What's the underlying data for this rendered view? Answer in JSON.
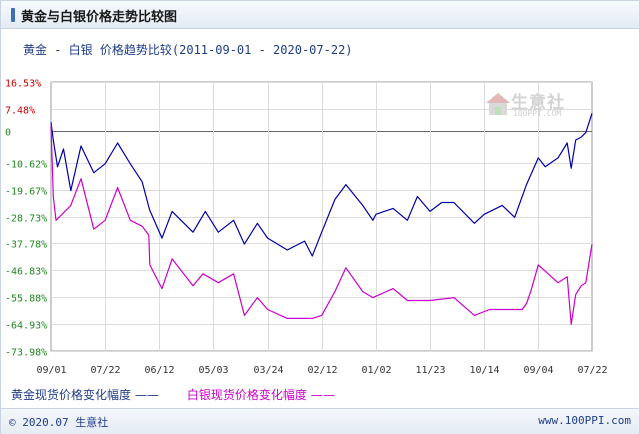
{
  "header": {
    "title": "黄金与白银价格走势比较图"
  },
  "watermark": {
    "brand": "生意社",
    "url": "100PPI.COM"
  },
  "chart_data": {
    "type": "line",
    "title": "黄金 - 白银 价格趋势比较",
    "date_range": "(2011-09-01 - 2020-07-22)",
    "y_ticks": [
      "16.53%",
      "7.48%",
      "0",
      "-10.62%",
      "-19.67%",
      "-28.73%",
      "-37.78%",
      "-46.83%",
      "-55.88%",
      "-64.93%",
      "-73.98%"
    ],
    "y_tick_values": [
      16.53,
      7.48,
      0,
      -10.62,
      -19.67,
      -28.73,
      -37.78,
      -46.83,
      -55.88,
      -64.93,
      -73.98
    ],
    "ylim": [
      -73.98,
      16.53
    ],
    "x_ticks": [
      "09/01",
      "07/22",
      "06/12",
      "05/03",
      "03/24",
      "02/12",
      "01/02",
      "11/23",
      "10/14",
      "09/04",
      "07/22"
    ],
    "x_tick_dates": [
      "2011-09-01",
      "2012-07-22",
      "2013-06-12",
      "2014-05-03",
      "2015-03-24",
      "2016-02-12",
      "2017-01-02",
      "2017-11-23",
      "2018-10-14",
      "2019-09-04",
      "2020-07-22"
    ],
    "grid": true,
    "series": [
      {
        "name": "黄金现货价格变化幅度",
        "color": "#0000aa",
        "x": [
          "2011-09-01",
          "2011-09-15",
          "2011-10-10",
          "2011-11-15",
          "2011-12-29",
          "2012-02-28",
          "2012-05-15",
          "2012-07-22",
          "2012-10-05",
          "2012-12-20",
          "2013-03-01",
          "2013-04-15",
          "2013-06-28",
          "2013-08-28",
          "2013-12-31",
          "2014-03-15",
          "2014-06-01",
          "2014-09-01",
          "2014-11-05",
          "2015-01-22",
          "2015-03-24",
          "2015-07-20",
          "2015-11-01",
          "2015-12-17",
          "2016-02-12",
          "2016-05-01",
          "2016-07-06",
          "2016-10-15",
          "2016-12-15",
          "2017-01-02",
          "2017-04-15",
          "2017-07-10",
          "2017-09-08",
          "2017-11-23",
          "2018-02-01",
          "2018-04-15",
          "2018-08-16",
          "2018-10-14",
          "2019-01-30",
          "2019-04-15",
          "2019-06-25",
          "2019-09-04",
          "2019-10-15",
          "2019-12-31",
          "2020-02-24",
          "2020-03-19",
          "2020-04-15",
          "2020-05-18",
          "2020-06-15",
          "2020-07-22"
        ],
        "values": [
          3.0,
          -3.0,
          -12.0,
          -6.0,
          -20.0,
          -5.0,
          -14.0,
          -11.0,
          -4.0,
          -11.0,
          -17.0,
          -26.5,
          -36.0,
          -27.0,
          -34.0,
          -27.0,
          -34.0,
          -30.0,
          -38.0,
          -31.0,
          -36.0,
          -40.0,
          -37.0,
          -42.0,
          -34.0,
          -23.0,
          -18.0,
          -25.0,
          -30.0,
          -28.0,
          -26.0,
          -30.0,
          -22.0,
          -27.0,
          -24.0,
          -24.0,
          -31.0,
          -28.0,
          -25.0,
          -29.0,
          -18.0,
          -9.0,
          -12.0,
          -9.0,
          -4.0,
          -12.5,
          -3.0,
          -2.0,
          -0.5,
          6.0
        ]
      },
      {
        "name": "白银现货价格变化幅度",
        "color": "#cc00cc",
        "x": [
          "2011-09-01",
          "2011-09-15",
          "2011-10-01",
          "2011-12-29",
          "2012-02-28",
          "2012-05-15",
          "2012-07-22",
          "2012-10-05",
          "2012-12-20",
          "2013-03-01",
          "2013-04-10",
          "2013-04-16",
          "2013-06-28",
          "2013-08-28",
          "2013-12-31",
          "2014-03-01",
          "2014-06-01",
          "2014-09-01",
          "2014-11-05",
          "2015-01-22",
          "2015-03-24",
          "2015-07-20",
          "2015-12-17",
          "2016-02-12",
          "2016-05-01",
          "2016-07-06",
          "2016-10-15",
          "2016-12-15",
          "2017-04-15",
          "2017-07-10",
          "2017-11-23",
          "2018-04-15",
          "2018-08-16",
          "2018-11-15",
          "2019-05-30",
          "2019-06-25",
          "2019-07-20",
          "2019-09-04",
          "2019-12-31",
          "2020-02-24",
          "2020-03-19",
          "2020-04-15",
          "2020-05-18",
          "2020-06-15",
          "2020-07-22"
        ],
        "values": [
          2.0,
          -22.0,
          -30.0,
          -25.0,
          -16.0,
          -33.0,
          -30.0,
          -19.0,
          -30.0,
          -32.0,
          -35.0,
          -45.0,
          -53.0,
          -43.0,
          -52.0,
          -48.0,
          -51.0,
          -48.0,
          -62.0,
          -56.0,
          -60.0,
          -63.0,
          -63.0,
          -62.0,
          -54.0,
          -46.0,
          -54.0,
          -56.0,
          -53.0,
          -57.0,
          -57.0,
          -56.0,
          -62.0,
          -60.0,
          -60.0,
          -58.0,
          -54.0,
          -45.0,
          -51.0,
          -49.0,
          -65.0,
          -55.0,
          -52.0,
          -51.0,
          -38.0
        ]
      }
    ]
  },
  "legend": {
    "gold_label": "黄金现货价格变化幅度",
    "gold_line": "——",
    "silver_label": "白银现货价格变化幅度",
    "silver_line": "——"
  },
  "footer": {
    "left": "© 2020.07 生意社",
    "right": "www.100PPI.com"
  }
}
